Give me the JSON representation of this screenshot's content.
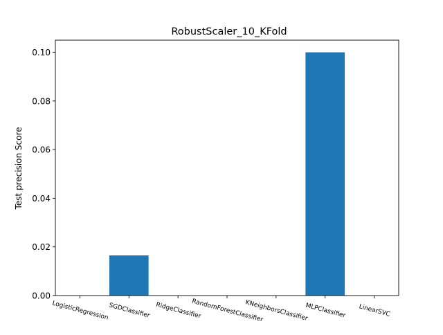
{
  "chart_data": {
    "type": "bar",
    "title": "RobustScaler_10_KFold",
    "xlabel": "",
    "ylabel": "Test precision Score",
    "categories": [
      "LogisticRegression",
      "SGDClassifier",
      "RidgeClassifier",
      "RandomForestClassifier",
      "KNeighborsClassifier",
      "MLPClassifier",
      "LinearSVC"
    ],
    "values": [
      0.0,
      0.0165,
      0.0,
      0.0,
      0.0,
      0.1,
      0.0
    ],
    "ylim": [
      0,
      0.105
    ],
    "yticks": [
      0.0,
      0.02,
      0.04,
      0.06,
      0.08,
      0.1
    ],
    "ytick_labels": [
      "0.00",
      "0.02",
      "0.04",
      "0.06",
      "0.08",
      "0.10"
    ],
    "bar_color": "#1f77b4",
    "grid": false,
    "legend": "none"
  }
}
